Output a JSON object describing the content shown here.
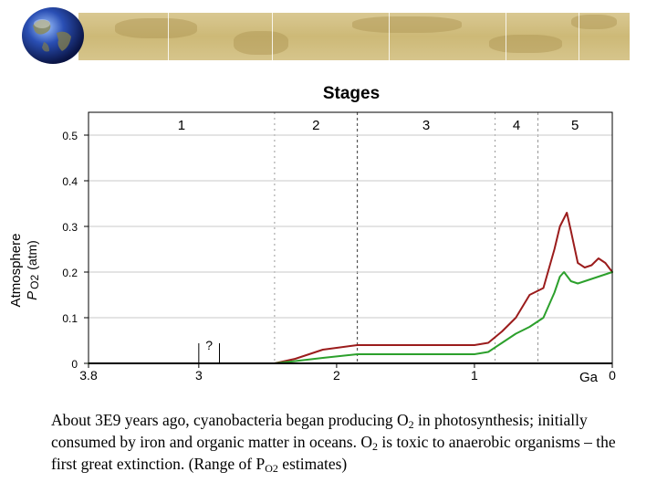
{
  "slide": {
    "caption": {
      "part1": "About 3E9 years ago, cyanobacteria began producing O",
      "sub1": "2",
      "part2": " in photosynthesis; initially consumed by iron and organic matter in oceans.  O",
      "sub2": "2",
      "part3": " is toxic to anaerobic organisms – the first great extinction. (Range of P",
      "sub3": "O2",
      "part4": " estimates)"
    }
  },
  "colors": {
    "upper_estimate": "#9b1c1c",
    "lower_estimate": "#2ca02c",
    "axis": "#000000",
    "grid": "#c8c8c8",
    "stage_divider": "#808080"
  },
  "chart_data": {
    "type": "line",
    "title": "Stages",
    "ylabel_line1": "Atmosphere",
    "ylabel_p": "P",
    "ylabel_o2": "O2",
    "ylabel_unit": "(atm)",
    "xunit": "Ga",
    "xlim": [
      3.8,
      0
    ],
    "ylim": [
      0,
      0.55
    ],
    "xticks": [
      {
        "value": 3.8,
        "label": "3.8"
      },
      {
        "value": 3,
        "label": "3"
      },
      {
        "value": 2,
        "label": "2"
      },
      {
        "value": 1,
        "label": "1"
      },
      {
        "value": 0,
        "label": "0"
      }
    ],
    "yticks": [
      {
        "value": 0,
        "label": "0"
      },
      {
        "value": 0.1,
        "label": "0.1"
      },
      {
        "value": 0.2,
        "label": "0.2"
      },
      {
        "value": 0.3,
        "label": "0.3"
      },
      {
        "value": 0.4,
        "label": "0.4"
      },
      {
        "value": 0.5,
        "label": "0.5"
      }
    ],
    "grid": true,
    "stages": [
      {
        "label": "1",
        "start": 3.8,
        "end": 2.45
      },
      {
        "label": "2",
        "start": 2.45,
        "end": 1.85
      },
      {
        "label": "3",
        "start": 1.85,
        "end": 0.85
      },
      {
        "label": "4",
        "start": 0.85,
        "end": 0.54
      },
      {
        "label": "5",
        "start": 0.54,
        "end": 0
      }
    ],
    "uncertainty_marker": {
      "label": "?",
      "start": 3.0,
      "end": 2.85
    },
    "series": [
      {
        "key": "upper",
        "x": [
          3.8,
          2.45,
          2.3,
          2.1,
          1.85,
          1.5,
          1.2,
          1.0,
          0.9,
          0.8,
          0.7,
          0.6,
          0.5,
          0.42,
          0.38,
          0.33,
          0.3,
          0.25,
          0.2,
          0.15,
          0.1,
          0.05,
          0.0
        ],
        "y": [
          0.0,
          0.0,
          0.01,
          0.03,
          0.04,
          0.04,
          0.04,
          0.04,
          0.045,
          0.07,
          0.1,
          0.15,
          0.165,
          0.25,
          0.3,
          0.33,
          0.29,
          0.22,
          0.21,
          0.215,
          0.23,
          0.22,
          0.2
        ]
      },
      {
        "key": "lower",
        "x": [
          3.8,
          2.45,
          2.3,
          2.1,
          1.85,
          1.5,
          1.2,
          1.0,
          0.9,
          0.8,
          0.7,
          0.6,
          0.5,
          0.42,
          0.38,
          0.35,
          0.3,
          0.25,
          0.2,
          0.1,
          0.0
        ],
        "y": [
          0.0,
          0.0,
          0.005,
          0.012,
          0.02,
          0.02,
          0.02,
          0.02,
          0.025,
          0.045,
          0.065,
          0.08,
          0.1,
          0.155,
          0.19,
          0.2,
          0.18,
          0.175,
          0.18,
          0.19,
          0.2
        ]
      }
    ]
  }
}
